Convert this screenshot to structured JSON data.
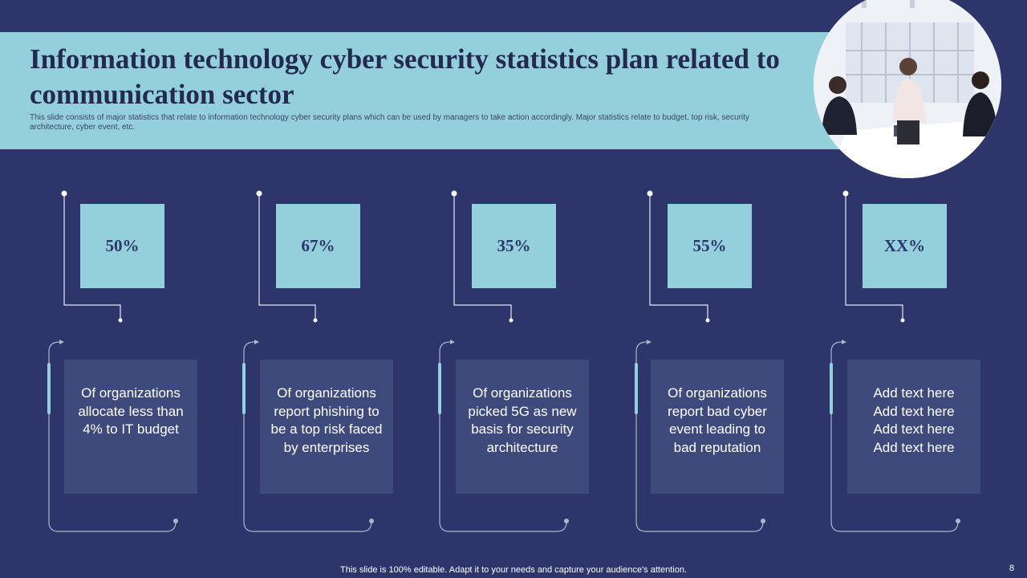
{
  "slide": {
    "title": "Information technology cyber security statistics plan related to communication sector",
    "subtitle": "This slide consists of major statistics that relate to information technology cyber security plans which can be used by managers to take action accordingly. Major statistics relate to budget, top risk, security architecture, cyber event, etc.",
    "footer": "This slide is 100% editable. Adapt it to your needs and capture your audience's attention.",
    "page_number": "8"
  },
  "stats": [
    {
      "value": "50%",
      "description": "Of organizations allocate less than 4% to IT budget"
    },
    {
      "value": "67%",
      "description": "Of organizations report phishing to be a top risk faced by enterprises"
    },
    {
      "value": "35%",
      "description": "Of organizations picked 5G as new basis for security architecture"
    },
    {
      "value": "55%",
      "description": "Of organizations report bad cyber event leading to bad reputation"
    },
    {
      "value": "XX%",
      "description_lines": [
        "Add text here",
        "Add text here",
        "Add text here",
        "Add text here"
      ]
    }
  ],
  "colors": {
    "background": "#2d356a",
    "accent": "#94d0dc",
    "card": "#3e4a7c",
    "title_text": "#23294f"
  }
}
